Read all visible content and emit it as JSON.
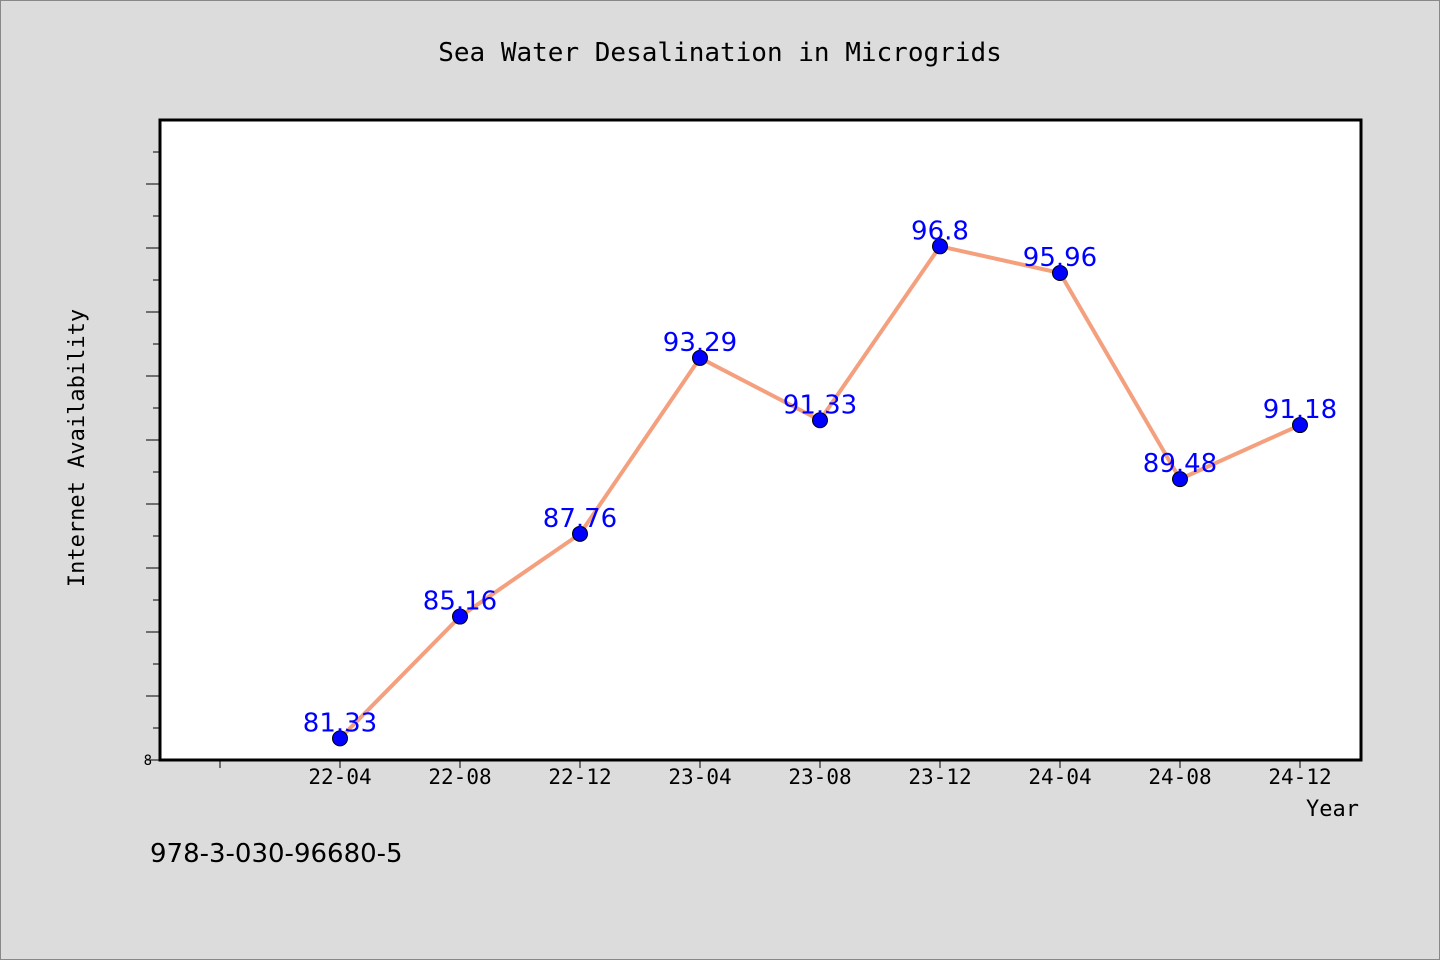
{
  "chart_data": {
    "type": "line",
    "title": "Sea Water Desalination in Microgrids",
    "xlabel": "Year",
    "ylabel": "Internet Availability",
    "categories": [
      "22-04",
      "22-08",
      "22-12",
      "23-04",
      "23-08",
      "23-12",
      "24-04",
      "24-08",
      "24-12"
    ],
    "series": [
      {
        "values": [
          81.33,
          85.16,
          87.76,
          93.29,
          91.33,
          96.8,
          95.96,
          89.48,
          91.18
        ],
        "value_labels": [
          "81.33",
          "85.16",
          "87.76",
          "93.29",
          "91.33",
          "96.8",
          "95.96",
          "89.48",
          "91.18"
        ]
      }
    ],
    "ylim": [
      80.65,
      100.77
    ],
    "y_min_label": "8",
    "grid": false,
    "line_color": "#f4a07e",
    "marker_color": "#0000ff",
    "label_color": "#0000ff",
    "plot_background": "#ffffff",
    "page_background": "#dcdcdc"
  },
  "footer": {
    "isbn": "978-3-030-96680-5"
  }
}
